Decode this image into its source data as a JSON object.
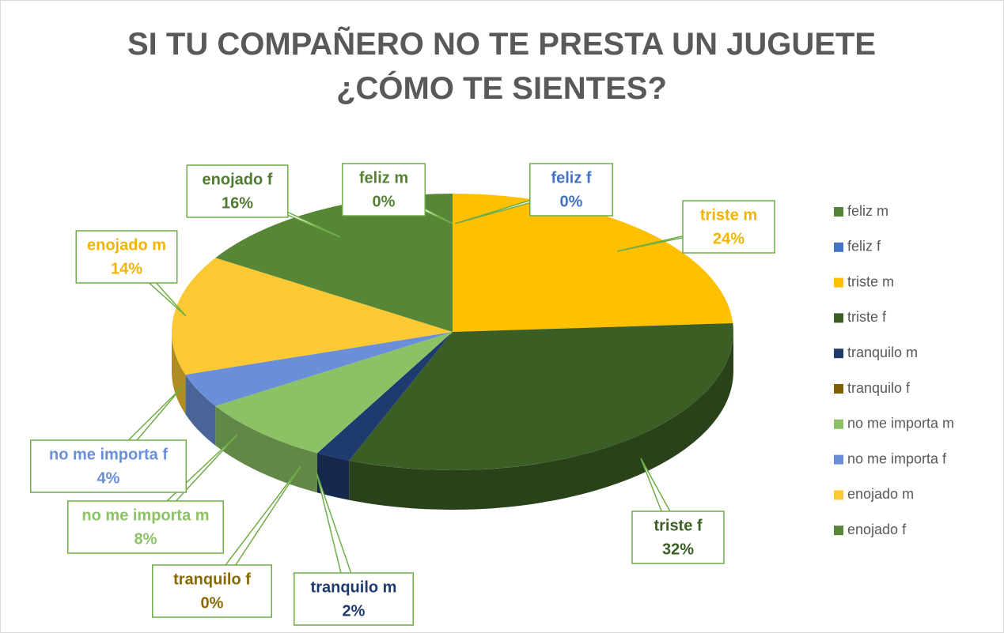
{
  "chart_data": {
    "type": "pie",
    "title": "SI TU COMPAÑERO NO TE PRESTA UN JUGUETE ¿CÓMO TE SIENTES?",
    "categories": [
      "feliz m",
      "feliz f",
      "triste m",
      "triste f",
      "tranquilo m",
      "tranquilo f",
      "no me importa m",
      "no me importa f",
      "enojado m",
      "enojado f"
    ],
    "values": [
      0,
      0,
      24,
      32,
      2,
      0,
      8,
      4,
      14,
      16
    ],
    "value_labels": [
      "0%",
      "0%",
      "24%",
      "32%",
      "2%",
      "0%",
      "8%",
      "4%",
      "14%",
      "16%"
    ],
    "colors": [
      "#548235",
      "#4472c4",
      "#ffc000",
      "#3b5e24",
      "#1f3a6e",
      "#7f6000",
      "#8cc266",
      "#6a8fd8",
      "#fbc934",
      "#568636"
    ],
    "label_colors": [
      "#548235",
      "#4472c4",
      "#f2b400",
      "#3b5e24",
      "#1f3a6e",
      "#8a6a00",
      "#8cc266",
      "#6a8fd8",
      "#f2b400",
      "#4f7a30"
    ],
    "legend": "right"
  }
}
